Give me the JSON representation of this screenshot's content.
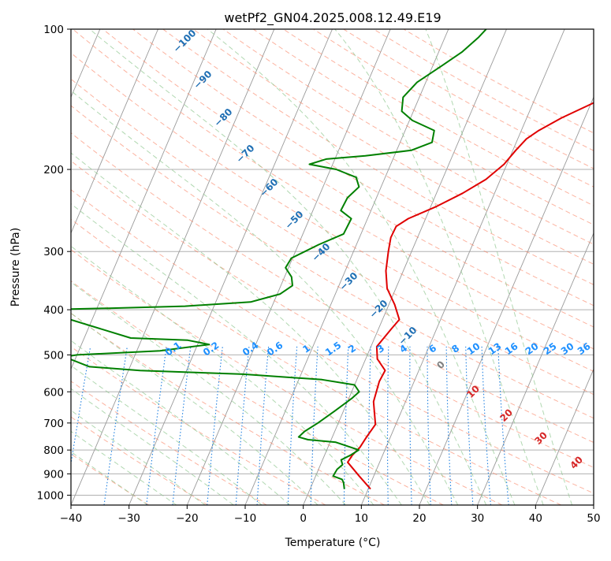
{
  "chart_data": {
    "type": "line",
    "subtype": "skew-T log-P diagram",
    "title": "wetPf2_GN04.2025.008.12.49.E19",
    "xlabel": "Temperature (°C)",
    "ylabel": "Pressure (hPa)",
    "xlim": [
      -40,
      50
    ],
    "ylim": [
      1050,
      100
    ],
    "y_scale": "log",
    "grid": true,
    "legend": "none",
    "x_ticks": [
      "−40",
      "−30",
      "−20",
      "−10",
      "0",
      "10",
      "20",
      "30",
      "40",
      "50"
    ],
    "y_ticks": [
      "100",
      "200",
      "300",
      "400",
      "500",
      "600",
      "700",
      "800",
      "900",
      "1000"
    ],
    "series": [
      {
        "color": "#e00000",
        "points": [
          [
            10.4,
            970
          ],
          [
            7.5,
            910
          ],
          [
            4.5,
            850
          ],
          [
            4.8,
            820
          ],
          [
            5.5,
            790
          ],
          [
            5.9,
            750
          ],
          [
            6.5,
            705
          ],
          [
            4.5,
            630
          ],
          [
            4.0,
            570
          ],
          [
            4.2,
            540
          ],
          [
            2.0,
            510
          ],
          [
            1.0,
            480
          ],
          [
            2.2,
            440
          ],
          [
            2.9,
            420
          ],
          [
            1.0,
            390
          ],
          [
            -1.5,
            360
          ],
          [
            -3.0,
            330
          ],
          [
            -4.0,
            300
          ],
          [
            -4.6,
            280
          ],
          [
            -4.5,
            265
          ],
          [
            -3.0,
            255
          ],
          [
            1.0,
            240
          ],
          [
            4.5,
            225
          ],
          [
            7.5,
            210
          ],
          [
            9.5,
            195
          ],
          [
            10.5,
            182
          ],
          [
            11.5,
            172
          ],
          [
            13.0,
            165
          ],
          [
            16.0,
            155
          ],
          [
            20.0,
            145
          ],
          [
            24.0,
            135
          ],
          [
            26.0,
            125
          ],
          [
            27.5,
            115
          ],
          [
            29.0,
            108
          ],
          [
            30.5,
            102
          ],
          [
            32.0,
            100
          ]
        ]
      },
      {
        "color": "#008000",
        "points": [
          [
            5.9,
            970
          ],
          [
            5.3,
            940
          ],
          [
            4.8,
            925
          ],
          [
            3.0,
            910
          ],
          [
            3.2,
            880
          ],
          [
            3.8,
            860
          ],
          [
            3.2,
            840
          ],
          [
            4.5,
            820
          ],
          [
            5.5,
            800
          ],
          [
            1.0,
            770
          ],
          [
            -4.0,
            760
          ],
          [
            -5.8,
            750
          ],
          [
            -5.2,
            730
          ],
          [
            -3.5,
            700
          ],
          [
            -1.5,
            660
          ],
          [
            0.5,
            620
          ],
          [
            1.3,
            600
          ],
          [
            0.0,
            580
          ],
          [
            -6.0,
            565
          ],
          [
            -20.0,
            550
          ],
          [
            -38.0,
            540
          ],
          [
            -47.0,
            530
          ],
          [
            -52.0,
            505
          ],
          [
            -50.0,
            500
          ],
          [
            -36.0,
            490
          ],
          [
            -28.0,
            475
          ],
          [
            -32.0,
            465
          ],
          [
            -42.0,
            460
          ],
          [
            -60.0,
            400
          ],
          [
            -48.0,
            397
          ],
          [
            -35.0,
            393
          ],
          [
            -24.0,
            385
          ],
          [
            -19.5,
            370
          ],
          [
            -18.0,
            355
          ],
          [
            -18.8,
            340
          ],
          [
            -20.5,
            325
          ],
          [
            -20.2,
            310
          ],
          [
            -16.5,
            290
          ],
          [
            -13.0,
            275
          ],
          [
            -12.8,
            255
          ],
          [
            -15.2,
            245
          ],
          [
            -15.0,
            230
          ],
          [
            -13.8,
            218
          ],
          [
            -15.0,
            208
          ],
          [
            -19.0,
            200
          ],
          [
            -24.0,
            195
          ],
          [
            -21.5,
            190
          ],
          [
            -15.0,
            187
          ],
          [
            -7.5,
            182
          ],
          [
            -4.5,
            175
          ],
          [
            -5.0,
            165
          ],
          [
            -9.5,
            157
          ],
          [
            -12.0,
            150
          ],
          [
            -12.8,
            140
          ],
          [
            -11.5,
            130
          ],
          [
            -8.5,
            120
          ],
          [
            -6.0,
            112
          ],
          [
            -4.2,
            104
          ],
          [
            -3.5,
            100
          ]
        ]
      }
    ],
    "isotherms_step": 10,
    "dry_adiabat_labels": [
      "−100",
      "−90",
      "−80",
      "−70",
      "−60",
      "−50",
      "−40",
      "−30",
      "−20",
      "−10"
    ],
    "moist_adiabat_labels": [
      "0",
      "10",
      "20",
      "30",
      "40"
    ],
    "mixing_ratio_labels": [
      "0.1",
      "0.2",
      "0.4",
      "0.6",
      "1",
      "1.5",
      "2",
      "3",
      "4",
      "6",
      "8",
      "10",
      "13",
      "16",
      "20",
      "25",
      "30",
      "36"
    ],
    "mixing_ratios": [
      0.1,
      0.2,
      0.4,
      0.6,
      1,
      1.5,
      2,
      3,
      4,
      6,
      8,
      10,
      13,
      16,
      20,
      25,
      30,
      36
    ],
    "colors": {
      "temperature": "#e00000",
      "dewpoint": "#008000",
      "dry_adiabat": "#fa8060",
      "moist_adiabat": "#90c890",
      "mixing_ratio": "#1e7fe0",
      "mixing_label": "#1e90ff",
      "dry_label": "#1f6fb4",
      "moist_label_warm": "#d62728",
      "moist_label_zero": "#808080",
      "isotherm": "#9a9a9a",
      "grid": "#b0b0b0"
    }
  }
}
